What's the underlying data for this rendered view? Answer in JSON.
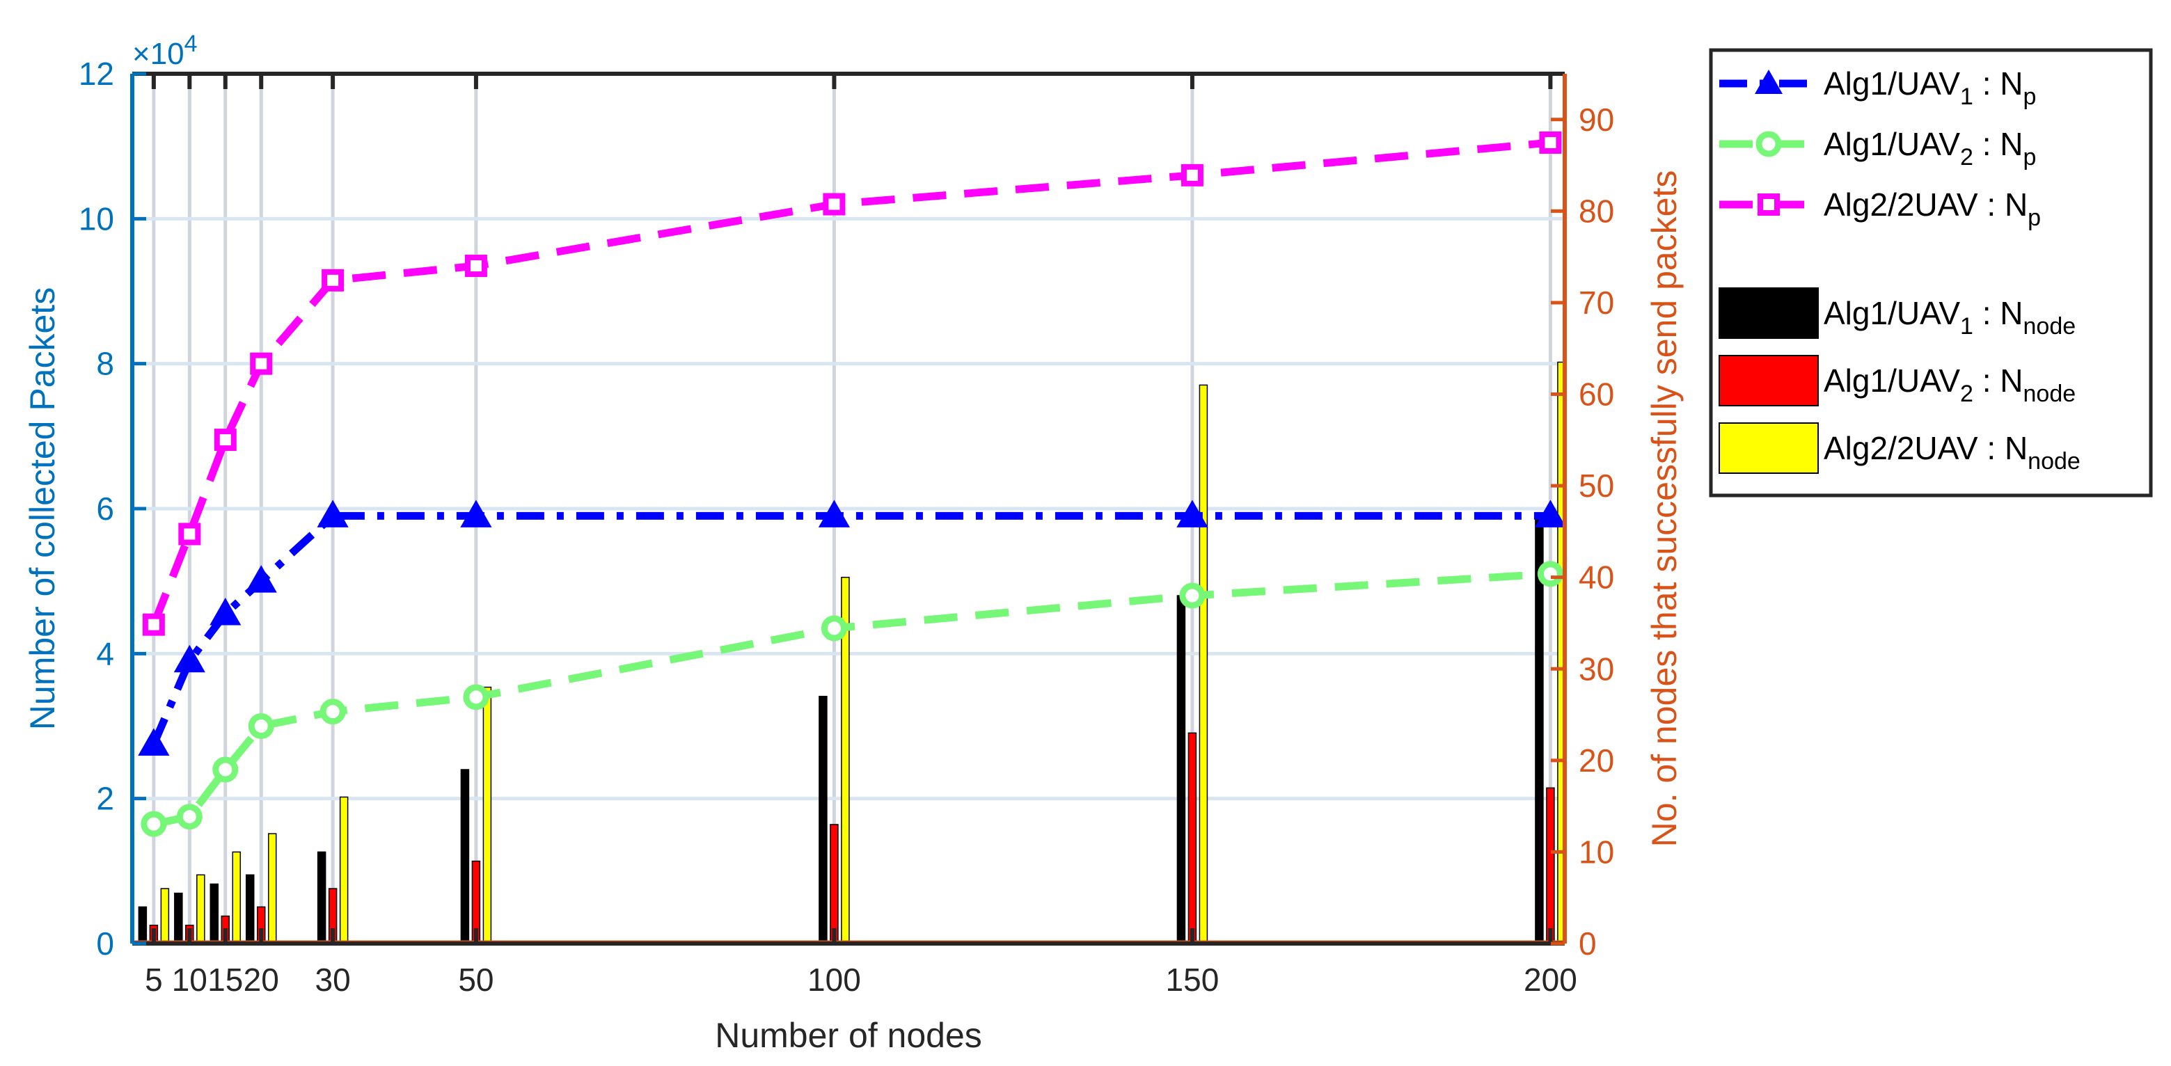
{
  "chart_data": {
    "type": "bar+line",
    "xlabel": "Number of nodes",
    "ylabel_left": "Number of collected Packets",
    "ylabel_right": "No. of nodes that successfully send packets",
    "y_left_exponent": "×10",
    "y_left_exponent_power": "4",
    "x_ticks": [
      "5",
      "10",
      "15",
      "20",
      "30",
      "50",
      "100",
      "150",
      "200"
    ],
    "x": [
      5,
      10,
      15,
      20,
      30,
      50,
      100,
      150,
      200
    ],
    "xlim": [
      2,
      202
    ],
    "y_left_ticks": [
      "0",
      "2",
      "4",
      "6",
      "8",
      "10",
      "12"
    ],
    "y_left_ticks_values": [
      0,
      2,
      4,
      6,
      8,
      10,
      12
    ],
    "ylim_left": [
      0,
      120000
    ],
    "y_right_ticks": [
      "0",
      "10",
      "20",
      "30",
      "40",
      "50",
      "60",
      "70",
      "80",
      "90"
    ],
    "y_right_ticks_values": [
      0,
      10,
      20,
      30,
      40,
      50,
      60,
      70,
      80,
      90
    ],
    "ylim_right": [
      0,
      95
    ],
    "grid": "on",
    "legend_position": "outside-right",
    "line_series": [
      {
        "label": "Alg1/UAV",
        "label_sub": "1",
        "label_tail": " : N",
        "label_tail_sub": "p",
        "color": "#0000ff",
        "style": "dashdot",
        "marker": "triangle",
        "values": [
          27500,
          39000,
          45500,
          50000,
          59000,
          59000,
          59000,
          59000,
          59000
        ]
      },
      {
        "label": "Alg1/UAV",
        "label_sub": "2",
        "label_tail": " : N",
        "label_tail_sub": "p",
        "color": "#77f777",
        "style": "dashed",
        "marker": "circle",
        "values": [
          16500,
          17500,
          24000,
          30000,
          32000,
          34000,
          43500,
          48000,
          51000
        ]
      },
      {
        "label": "Alg2/2UAV",
        "label_sub": "",
        "label_tail": " : N",
        "label_tail_sub": "p",
        "color": "#ff00ff",
        "style": "dashed",
        "marker": "square",
        "values": [
          44000,
          56500,
          69500,
          80000,
          91500,
          93500,
          102000,
          106000,
          110500
        ]
      }
    ],
    "bar_series": [
      {
        "label": "Alg1/UAV",
        "label_sub": "1",
        "label_tail": " : N",
        "label_tail_sub": "node",
        "color": "#000000",
        "values": [
          4,
          5.5,
          6.5,
          7.5,
          10,
          19,
          27,
          38,
          47
        ]
      },
      {
        "label": "Alg1/UAV",
        "label_sub": "2",
        "label_tail": " : N",
        "label_tail_sub": "node",
        "color": "#ff0000",
        "values": [
          2,
          2,
          3,
          4,
          6,
          9,
          13,
          23,
          17
        ]
      },
      {
        "label": "Alg2/2UAV",
        "label_sub": "",
        "label_tail": " : N",
        "label_tail_sub": "node",
        "color": "#ffff00",
        "values": [
          6,
          7.5,
          10,
          12,
          16,
          28,
          40,
          61,
          63.5
        ]
      }
    ],
    "left_axis_color": "#0072bd",
    "right_axis_color": "#d95319"
  }
}
